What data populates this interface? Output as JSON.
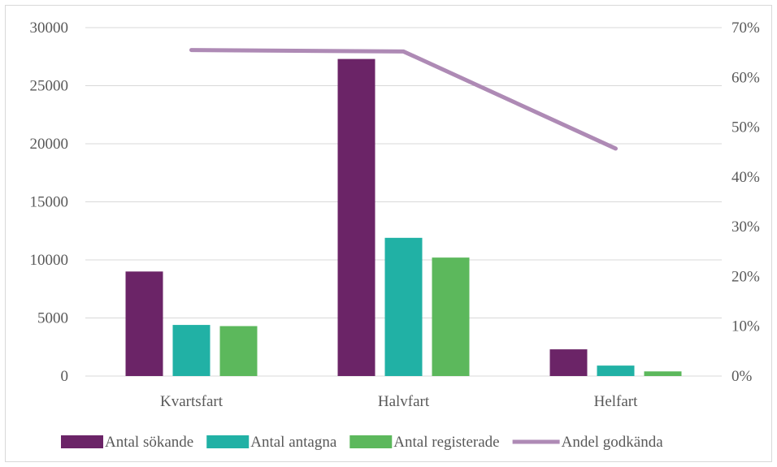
{
  "chart_data": {
    "type": "bar",
    "categories": [
      "Kvartsfart",
      "Halvfart",
      "Helfart"
    ],
    "series": [
      {
        "name": "Antal sökande",
        "kind": "bar",
        "axis": "left",
        "color": "#6b2467",
        "values": [
          9000,
          27300,
          2300
        ]
      },
      {
        "name": "Antal antagna",
        "kind": "bar",
        "axis": "left",
        "color": "#21b1a5",
        "values": [
          4400,
          11900,
          900
        ]
      },
      {
        "name": "Antal registerade",
        "kind": "bar",
        "axis": "left",
        "color": "#5cb85c",
        "values": [
          4300,
          10200,
          400
        ]
      },
      {
        "name": "Andel godkända",
        "kind": "line",
        "axis": "right",
        "color": "#ae8ab5",
        "values": [
          0.655,
          0.652,
          0.457
        ]
      }
    ],
    "y_left": {
      "min": 0,
      "max": 30000,
      "ticks": [
        "0",
        "5000",
        "10000",
        "15000",
        "20000",
        "25000",
        "30000"
      ]
    },
    "y_right": {
      "min": 0,
      "max": 0.7,
      "ticks": [
        "0%",
        "10%",
        "20%",
        "30%",
        "40%",
        "50%",
        "60%",
        "70%"
      ]
    },
    "grid": true,
    "legend_position": "bottom"
  }
}
